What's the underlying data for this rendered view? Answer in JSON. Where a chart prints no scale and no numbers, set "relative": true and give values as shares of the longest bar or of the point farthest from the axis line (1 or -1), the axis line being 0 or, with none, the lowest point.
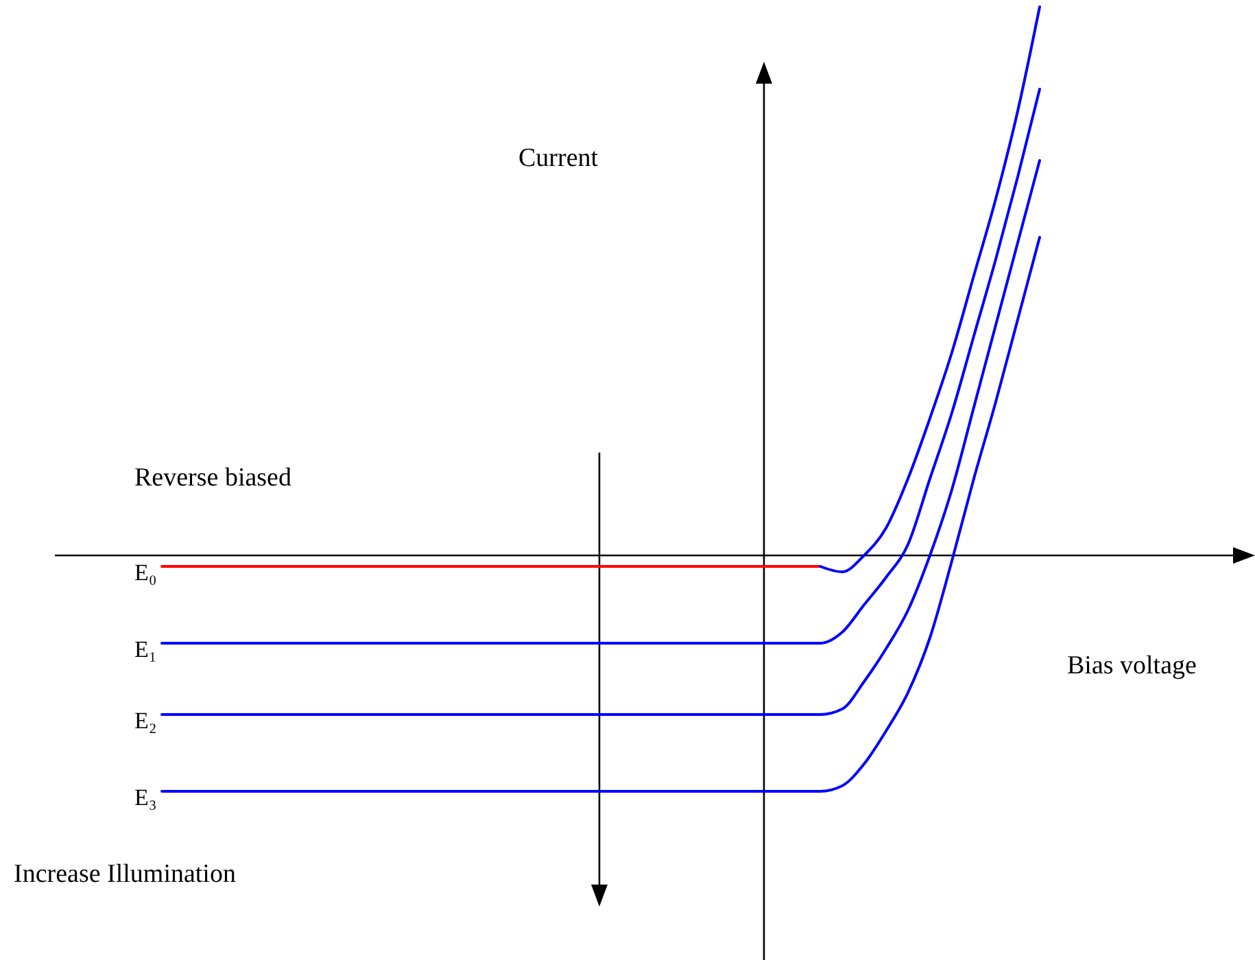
{
  "chart_data": {
    "type": "line",
    "relative": true,
    "xlabel": "Bias voltage",
    "ylabel": "Current",
    "annotations": [
      "Reverse biased",
      "Increase Illumination"
    ],
    "categories": [
      null,
      null,
      null,
      null,
      null,
      null,
      null,
      null,
      null,
      null,
      null,
      null,
      null,
      null,
      null,
      null,
      null,
      null,
      null,
      null,
      null,
      null,
      null,
      null,
      null,
      null,
      null,
      null,
      null,
      null,
      null,
      null,
      null,
      null,
      null,
      null,
      null,
      null,
      null,
      null,
      null
    ],
    "series": [
      {
        "name": "E₀",
        "color": "#ff0000",
        "values": [
          -0.02,
          -0.02,
          -0.02,
          -0.02,
          -0.02,
          -0.02,
          -0.02,
          -0.02,
          -0.02,
          -0.02,
          -0.02,
          -0.02,
          -0.02,
          -0.02,
          -0.02,
          -0.02,
          -0.02,
          -0.02,
          -0.02,
          -0.02,
          -0.02,
          -0.02,
          -0.02,
          -0.02,
          -0.02,
          -0.02,
          -0.02,
          -0.02,
          -0.02,
          -0.02,
          -0.02,
          null,
          null,
          null,
          null,
          null,
          null,
          null,
          null,
          null,
          null
        ]
      },
      {
        "color": "#0000ff",
        "values": [
          null,
          null,
          null,
          null,
          null,
          null,
          null,
          null,
          null,
          null,
          null,
          null,
          null,
          null,
          null,
          null,
          null,
          null,
          null,
          null,
          null,
          null,
          null,
          null,
          null,
          null,
          null,
          null,
          null,
          null,
          -0.02,
          -0.03,
          0,
          0.05,
          0.14,
          0.25,
          0.37,
          0.51,
          0.65,
          0.81,
          1
        ]
      },
      {
        "name": "E₁",
        "color": "#0000ff",
        "values": [
          -0.16,
          -0.16,
          -0.16,
          -0.16,
          -0.16,
          -0.16,
          -0.16,
          -0.16,
          -0.16,
          -0.16,
          -0.16,
          -0.16,
          -0.16,
          -0.16,
          -0.16,
          -0.16,
          -0.16,
          -0.16,
          -0.16,
          -0.16,
          -0.16,
          -0.16,
          -0.16,
          -0.16,
          -0.16,
          -0.16,
          -0.16,
          -0.16,
          -0.16,
          -0.16,
          -0.16,
          -0.14,
          -0.09,
          -0.04,
          0.02,
          0.14,
          0.26,
          0.4,
          0.54,
          0.69,
          0.85
        ]
      },
      {
        "name": "E₂",
        "color": "#0000ff",
        "values": [
          -0.29,
          -0.29,
          -0.29,
          -0.29,
          -0.29,
          -0.29,
          -0.29,
          -0.29,
          -0.29,
          -0.29,
          -0.29,
          -0.29,
          -0.29,
          -0.29,
          -0.29,
          -0.29,
          -0.29,
          -0.29,
          -0.29,
          -0.29,
          -0.29,
          -0.29,
          -0.29,
          -0.29,
          -0.29,
          -0.29,
          -0.29,
          -0.29,
          -0.29,
          -0.29,
          -0.29,
          -0.28,
          -0.23,
          -0.17,
          -0.1,
          0,
          0.12,
          0.27,
          0.42,
          0.57,
          0.72
        ]
      },
      {
        "name": "E₃",
        "color": "#0000ff",
        "values": [
          -0.43,
          -0.43,
          -0.43,
          -0.43,
          -0.43,
          -0.43,
          -0.43,
          -0.43,
          -0.43,
          -0.43,
          -0.43,
          -0.43,
          -0.43,
          -0.43,
          -0.43,
          -0.43,
          -0.43,
          -0.43,
          -0.43,
          -0.43,
          -0.43,
          -0.43,
          -0.43,
          -0.43,
          -0.43,
          -0.43,
          -0.43,
          -0.43,
          -0.43,
          -0.43,
          -0.43,
          -0.42,
          -0.38,
          -0.32,
          -0.25,
          -0.15,
          -0.01,
          0.14,
          0.28,
          0.43,
          0.58
        ]
      }
    ]
  }
}
